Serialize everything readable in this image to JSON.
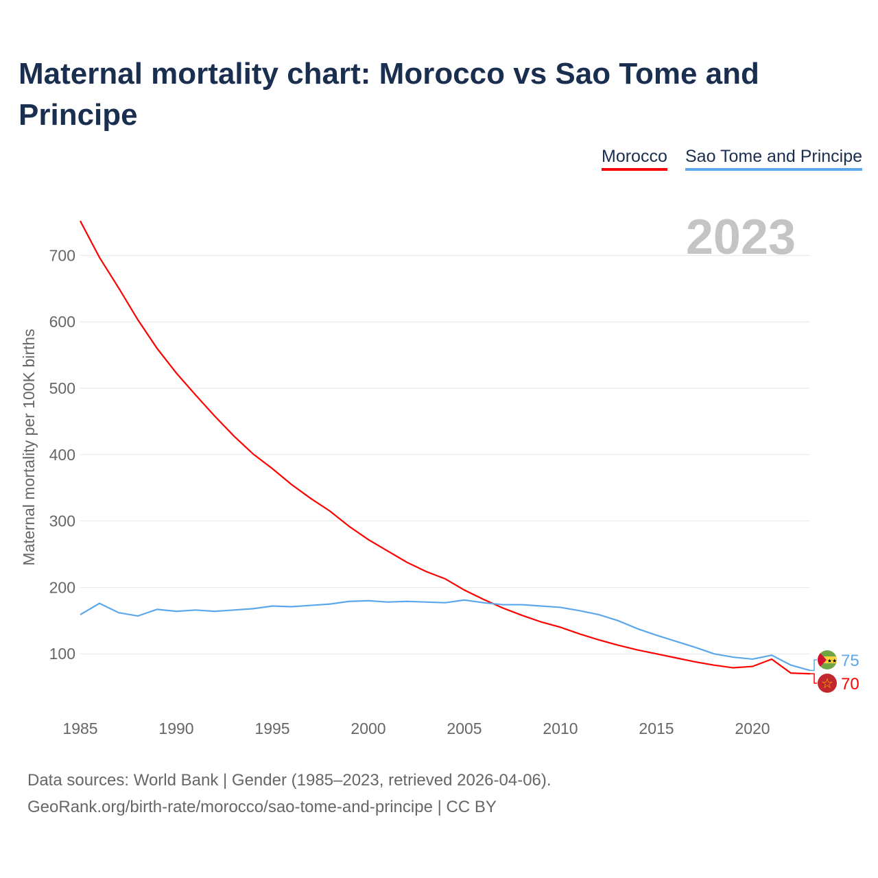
{
  "title": "Maternal mortality chart: Morocco vs Sao Tome and Principe",
  "legend": [
    "Morocco",
    "Sao Tome and Principe"
  ],
  "year_label": "2023",
  "source_line1": "Data sources: World Bank | Gender (1985–2023, retrieved 2026-04-06).",
  "source_line2": "GeoRank.org/birth-rate/morocco/sao-tome-and-principe | CC BY",
  "chart_data": {
    "type": "line",
    "title": "Maternal mortality chart: Morocco vs Sao Tome and Principe",
    "xlabel": "",
    "ylabel": "Maternal mortality per 100K births",
    "xlim": [
      1985,
      2023
    ],
    "ylim": [
      0,
      760
    ],
    "xticks": [
      1985,
      1990,
      1995,
      2000,
      2005,
      2010,
      2015,
      2020
    ],
    "yticks": [
      100,
      200,
      300,
      400,
      500,
      600,
      700
    ],
    "grid": true,
    "legend_position": "top-right",
    "x": [
      1985,
      1986,
      1987,
      1988,
      1989,
      1990,
      1991,
      1992,
      1993,
      1994,
      1995,
      1996,
      1997,
      1998,
      1999,
      2000,
      2001,
      2002,
      2003,
      2004,
      2005,
      2006,
      2007,
      2008,
      2009,
      2010,
      2011,
      2012,
      2013,
      2014,
      2015,
      2016,
      2017,
      2018,
      2019,
      2020,
      2021,
      2022,
      2023
    ],
    "series": [
      {
        "name": "Morocco",
        "color": "#ff0000",
        "end_label": "70",
        "values": [
          752,
          697,
          651,
          603,
          560,
          523,
          490,
          458,
          428,
          401,
          379,
          355,
          334,
          315,
          292,
          272,
          255,
          238,
          224,
          213,
          196,
          182,
          169,
          158,
          148,
          140,
          130,
          121,
          113,
          106,
          100,
          94,
          88,
          83,
          79,
          81,
          92,
          71,
          70
        ]
      },
      {
        "name": "Sao Tome and Principe",
        "color": "#5ba7ec",
        "end_label": "75",
        "values": [
          159,
          176,
          162,
          157,
          167,
          164,
          166,
          164,
          166,
          168,
          172,
          171,
          173,
          175,
          179,
          180,
          178,
          179,
          178,
          177,
          181,
          177,
          174,
          174,
          172,
          170,
          165,
          159,
          150,
          138,
          128,
          119,
          110,
          100,
          95,
          92,
          98,
          83,
          75
        ]
      }
    ]
  }
}
